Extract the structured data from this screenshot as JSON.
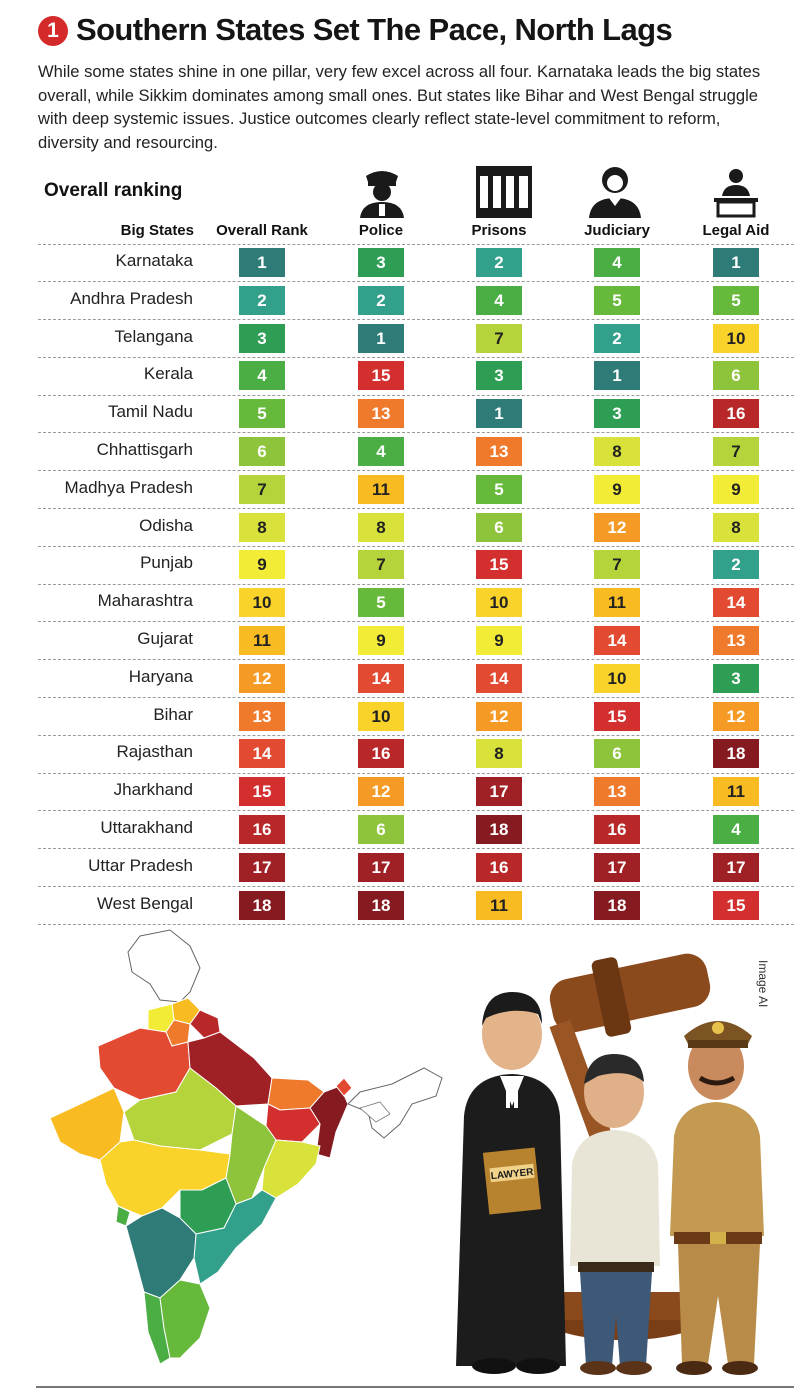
{
  "header": {
    "badge": "1",
    "title": "Southern States Set The Pace, North Lags",
    "intro": "While some states shine in one pillar, very few excel across all four. Karnataka leads the big states overall, while Sikkim dominates among small ones. But states like Bihar and West Bengal struggle with deep systemic issues. Justice outcomes clearly reflect state-level commitment to reform, diversity and resourcing."
  },
  "chart_data": {
    "type": "table",
    "title": "Overall ranking",
    "columns": [
      "Big States",
      "Overall Rank",
      "Police",
      "Prisons",
      "Judiciary",
      "Legal Aid"
    ],
    "rows": [
      {
        "state": "Karnataka",
        "ranks": [
          1,
          3,
          2,
          4,
          1
        ]
      },
      {
        "state": "Andhra Pradesh",
        "ranks": [
          2,
          2,
          4,
          5,
          5
        ]
      },
      {
        "state": "Telangana",
        "ranks": [
          3,
          1,
          7,
          2,
          10
        ]
      },
      {
        "state": "Kerala",
        "ranks": [
          4,
          15,
          3,
          1,
          6
        ]
      },
      {
        "state": "Tamil Nadu",
        "ranks": [
          5,
          13,
          1,
          3,
          16
        ]
      },
      {
        "state": "Chhattisgarh",
        "ranks": [
          6,
          4,
          13,
          8,
          7
        ]
      },
      {
        "state": "Madhya Pradesh",
        "ranks": [
          7,
          11,
          5,
          9,
          9
        ]
      },
      {
        "state": "Odisha",
        "ranks": [
          8,
          8,
          6,
          12,
          8
        ]
      },
      {
        "state": "Punjab",
        "ranks": [
          9,
          7,
          15,
          7,
          2
        ]
      },
      {
        "state": "Maharashtra",
        "ranks": [
          10,
          5,
          10,
          11,
          14
        ]
      },
      {
        "state": "Gujarat",
        "ranks": [
          11,
          9,
          9,
          14,
          13
        ]
      },
      {
        "state": "Haryana",
        "ranks": [
          12,
          14,
          14,
          10,
          3
        ]
      },
      {
        "state": "Bihar",
        "ranks": [
          13,
          10,
          12,
          15,
          12
        ]
      },
      {
        "state": "Rajasthan",
        "ranks": [
          14,
          16,
          8,
          6,
          18
        ]
      },
      {
        "state": "Jharkhand",
        "ranks": [
          15,
          12,
          17,
          13,
          11
        ]
      },
      {
        "state": "Uttarakhand",
        "ranks": [
          16,
          6,
          18,
          16,
          4
        ]
      },
      {
        "state": "Uttar Pradesh",
        "ranks": [
          17,
          17,
          16,
          17,
          17
        ]
      },
      {
        "state": "West Bengal",
        "ranks": [
          18,
          18,
          11,
          18,
          15
        ]
      }
    ],
    "rank_colors": {
      "1": "#2e7b78",
      "2": "#33a08c",
      "3": "#2f9e55",
      "4": "#4aae45",
      "5": "#67b93b",
      "6": "#8ec43b",
      "7": "#b5d33a",
      "8": "#d9e23a",
      "9": "#f2ec36",
      "10": "#f9d22a",
      "11": "#f8bb22",
      "12": "#f59a24",
      "13": "#f07a2c",
      "14": "#e24a32",
      "15": "#d42f2f",
      "16": "#b82828",
      "17": "#9f2025",
      "18": "#851b20"
    }
  },
  "illustration": {
    "book_label": "LAWYER",
    "credit": "Image AI"
  }
}
